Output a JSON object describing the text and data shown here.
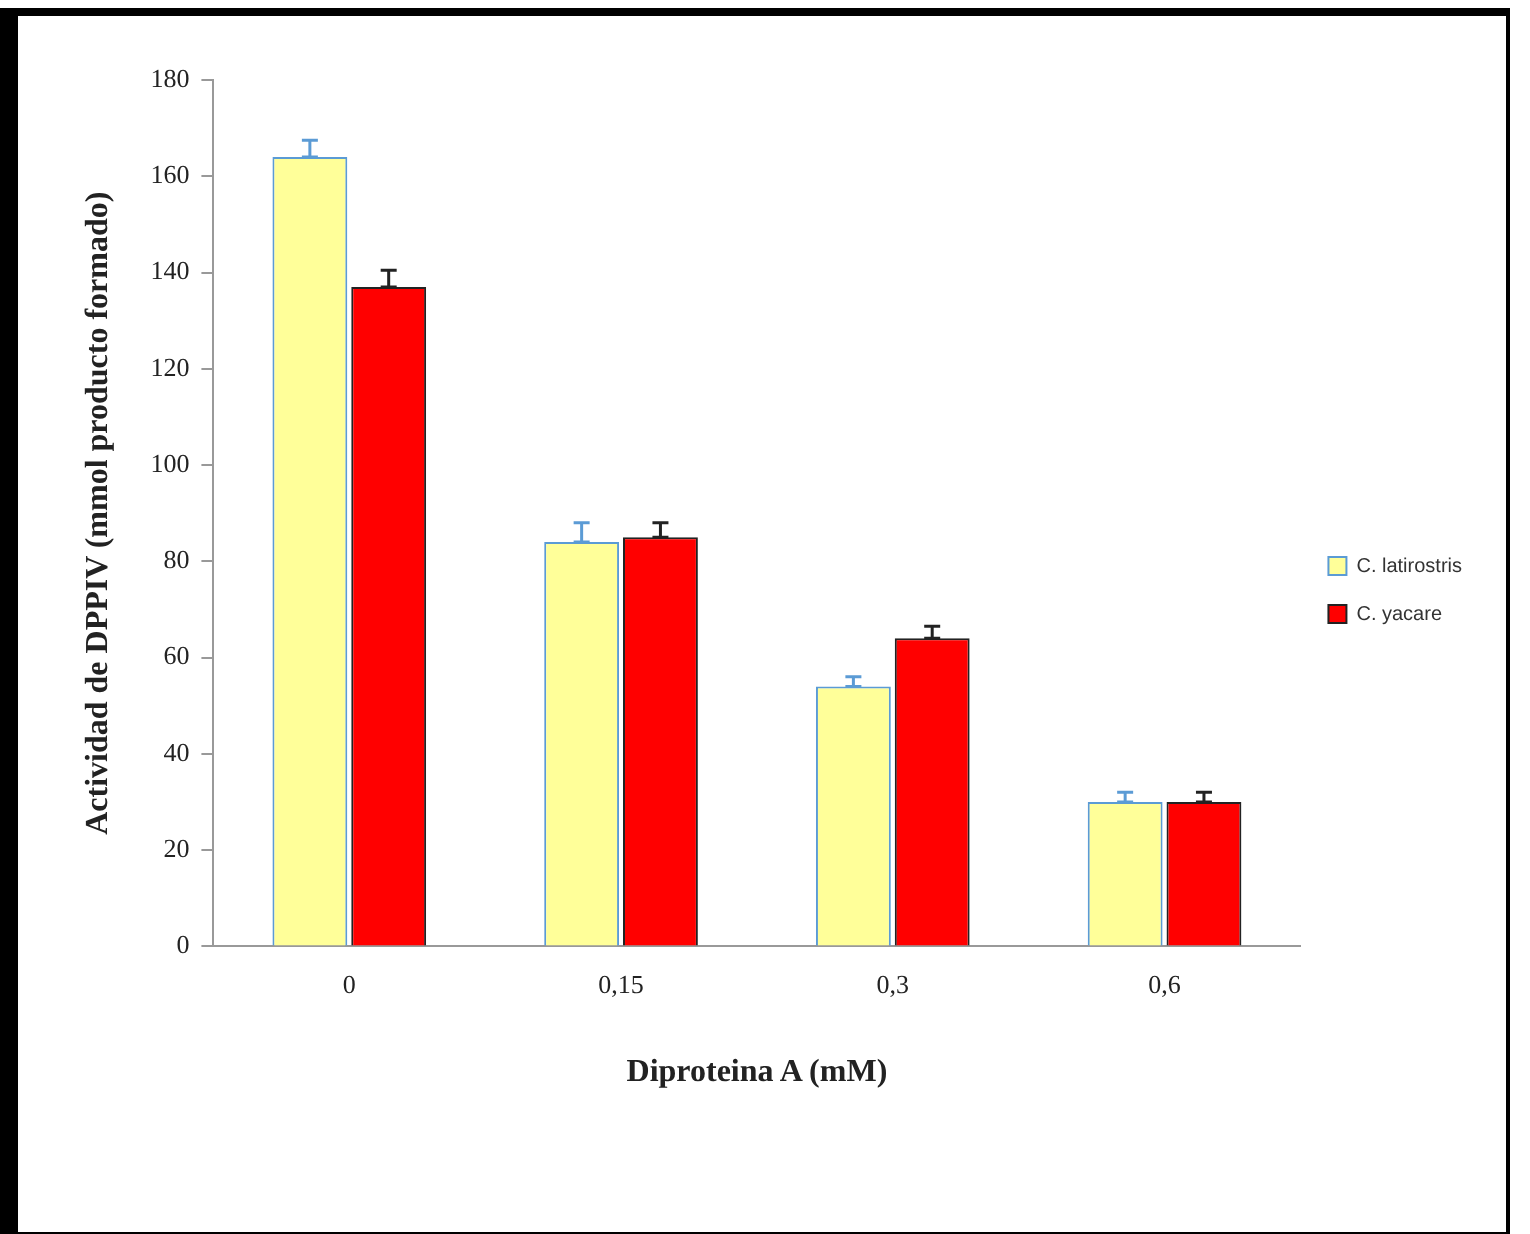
{
  "chart_data": {
    "type": "bar",
    "xlabel": "Diproteina A (mM)",
    "ylabel": "Actividad de DPPIV (mmol producto formado)",
    "categories": [
      "0",
      "0,15",
      "0,3",
      "0,6"
    ],
    "series": [
      {
        "name": "C. latirostris",
        "color": "#ffff99",
        "values": [
          164,
          84,
          54,
          30
        ],
        "errors": [
          [
            164,
            167.5
          ],
          [
            84,
            88
          ],
          [
            54,
            56
          ],
          [
            30,
            32
          ]
        ]
      },
      {
        "name": "C. yacare",
        "color": "#ff0000",
        "values": [
          137,
          85,
          64,
          30
        ],
        "errors": [
          [
            137,
            140.5
          ],
          [
            85,
            88
          ],
          [
            64,
            66.5
          ],
          [
            30,
            32
          ]
        ]
      }
    ],
    "ylim": [
      0,
      180
    ],
    "yticks": [
      0,
      20,
      40,
      60,
      80,
      100,
      120,
      140,
      160,
      180
    ],
    "grid": false,
    "legend": "right"
  }
}
